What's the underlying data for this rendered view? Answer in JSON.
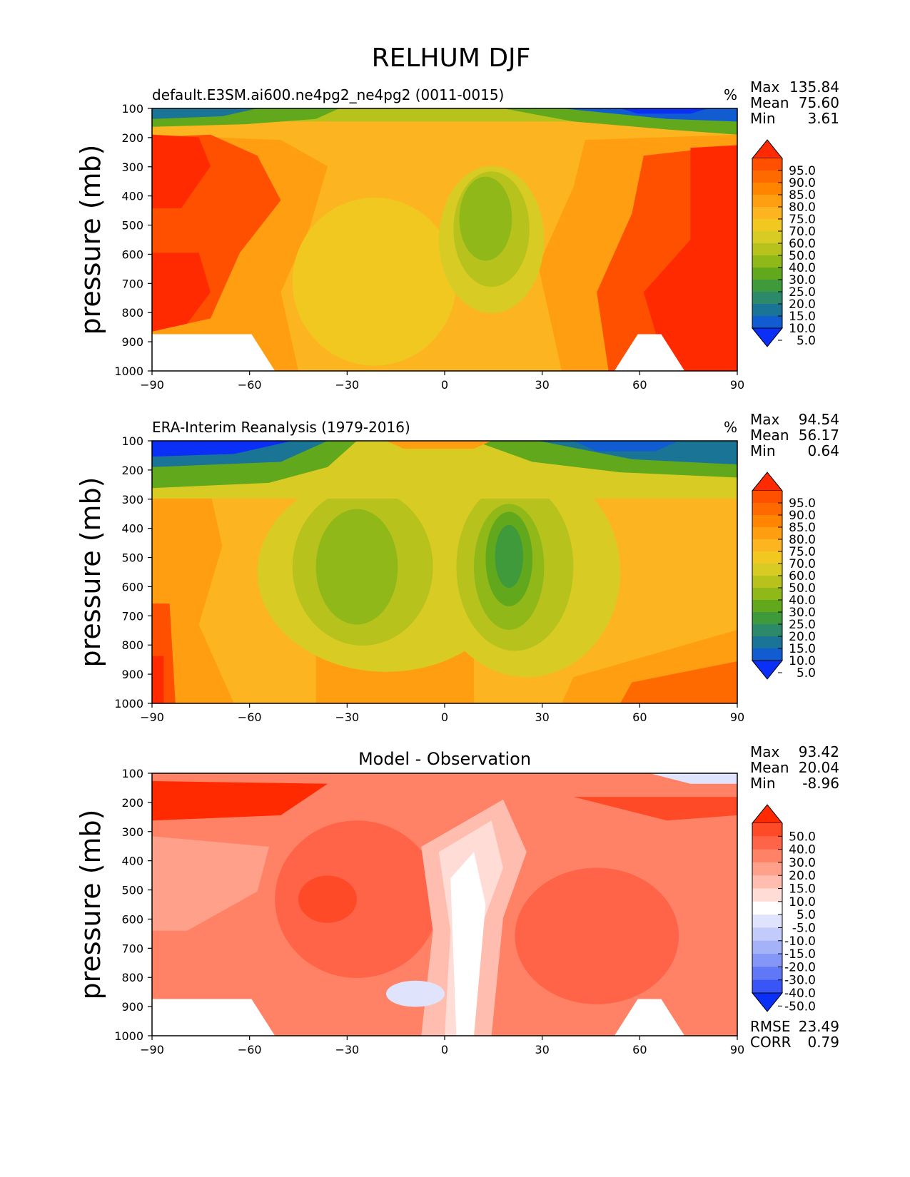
{
  "chart_data": {
    "type": "heatmap",
    "title": "RELHUM DJF",
    "panels": [
      {
        "title_left": "default.E3SM.ai600.ne4pg2_ne4pg2 (0011-0015)",
        "title_center": "",
        "units": "%",
        "ylabel": "pressure (mb)",
        "xticks": [
          "−90",
          "−60",
          "−30",
          "0",
          "30",
          "60",
          "90"
        ],
        "yticks": [
          "100",
          "200",
          "300",
          "400",
          "500",
          "600",
          "700",
          "800",
          "900",
          "1000"
        ],
        "xlim": [
          -90,
          90
        ],
        "ylim": [
          1000,
          100
        ],
        "stats": [
          {
            "label": "Max",
            "value": "135.84"
          },
          {
            "label": "Mean",
            "value": "75.60"
          },
          {
            "label": "Min",
            "value": "3.61"
          }
        ],
        "extra_stats": [],
        "colorbar": {
          "labels": [
            "95.0",
            "90.0",
            "85.0",
            "80.0",
            "75.0",
            "70.0",
            "60.0",
            "50.0",
            "40.0",
            "30.0",
            "25.0",
            "20.0",
            "15.0",
            "10.0",
            "5.0"
          ],
          "colors": [
            "#ff2a00",
            "#ff5000",
            "#ff6a00",
            "#ff8400",
            "#ff9e10",
            "#fcb520",
            "#f0c820",
            "#d8cc24",
            "#b8c21c",
            "#90b818",
            "#62a81c",
            "#3e9a3a",
            "#2c8a6a",
            "#1a7496",
            "#105cd0",
            "#0a30f8"
          ]
        }
      },
      {
        "title_left": "ERA-Interim Reanalysis (1979-2016)",
        "title_center": "",
        "units": "%",
        "ylabel": "pressure (mb)",
        "xticks": [
          "−90",
          "−60",
          "−30",
          "0",
          "30",
          "60",
          "90"
        ],
        "yticks": [
          "100",
          "200",
          "300",
          "400",
          "500",
          "600",
          "700",
          "800",
          "900",
          "1000"
        ],
        "xlim": [
          -90,
          90
        ],
        "ylim": [
          1000,
          100
        ],
        "stats": [
          {
            "label": "Max",
            "value": "94.54"
          },
          {
            "label": "Mean",
            "value": "56.17"
          },
          {
            "label": "Min",
            "value": "0.64"
          }
        ],
        "extra_stats": [],
        "colorbar": {
          "labels": [
            "95.0",
            "90.0",
            "85.0",
            "80.0",
            "75.0",
            "70.0",
            "60.0",
            "50.0",
            "40.0",
            "30.0",
            "25.0",
            "20.0",
            "15.0",
            "10.0",
            "5.0"
          ],
          "colors": [
            "#ff2a00",
            "#ff5000",
            "#ff6a00",
            "#ff8400",
            "#ff9e10",
            "#fcb520",
            "#f0c820",
            "#d8cc24",
            "#b8c21c",
            "#90b818",
            "#62a81c",
            "#3e9a3a",
            "#2c8a6a",
            "#1a7496",
            "#105cd0",
            "#0a30f8"
          ]
        }
      },
      {
        "title_left": "",
        "title_center": "Model - Observation",
        "units": "",
        "ylabel": "pressure (mb)",
        "xticks": [
          "−90",
          "−60",
          "−30",
          "0",
          "30",
          "60",
          "90"
        ],
        "yticks": [
          "100",
          "200",
          "300",
          "400",
          "500",
          "600",
          "700",
          "800",
          "900",
          "1000"
        ],
        "xlim": [
          -90,
          90
        ],
        "ylim": [
          1000,
          100
        ],
        "stats": [
          {
            "label": "Max",
            "value": "93.42"
          },
          {
            "label": "Mean",
            "value": "20.04"
          },
          {
            "label": "Min",
            "value": "-8.96"
          }
        ],
        "extra_stats": [
          {
            "label": "RMSE",
            "value": "23.49"
          },
          {
            "label": "CORR",
            "value": "0.79"
          }
        ],
        "colorbar": {
          "labels": [
            "50.0",
            "40.0",
            "30.0",
            "20.0",
            "15.0",
            "10.0",
            "5.0",
            "-5.0",
            "-10.0",
            "-15.0",
            "-20.0",
            "-30.0",
            "-40.0",
            "-50.0"
          ],
          "colors": [
            "#ff2a00",
            "#ff4a28",
            "#ff6448",
            "#ff8266",
            "#ffa08a",
            "#ffbdb0",
            "#ffdcd6",
            "#ffffff",
            "#dfe4fc",
            "#c2cbfa",
            "#a4b2f8",
            "#8496f6",
            "#6077f6",
            "#3a55f6",
            "#0a30f8"
          ]
        }
      }
    ]
  }
}
